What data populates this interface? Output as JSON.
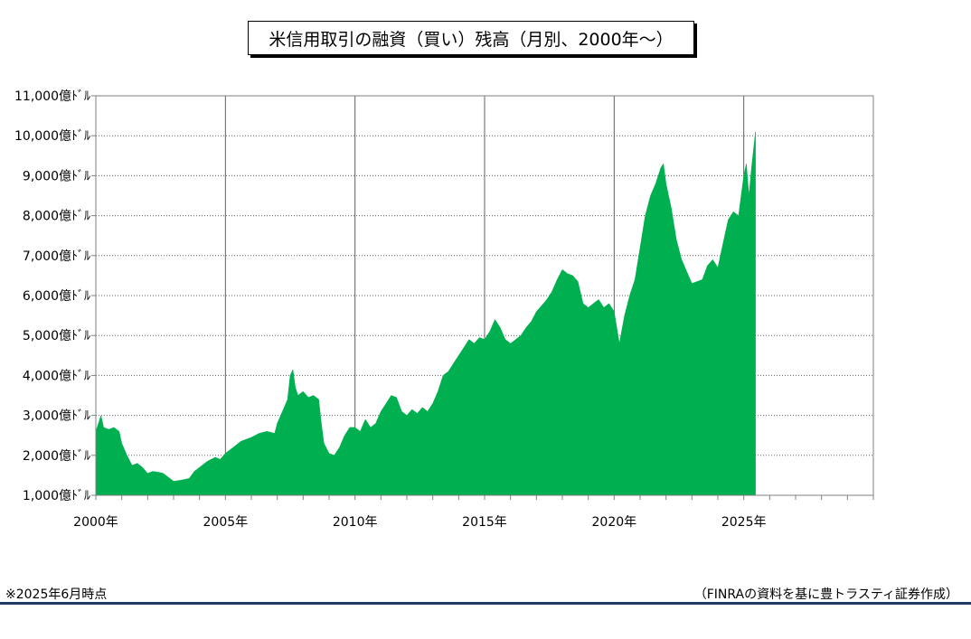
{
  "page": {
    "title": "米信用取引の融資（買い）残高（月別、2000年〜）",
    "footnote": "※2025年6月時点",
    "source": "（FINRAの資料を基に豊トラスティ証券作成）"
  },
  "chart_data": {
    "type": "area",
    "title": "米信用取引の融資（買い）残高（月別、2000年〜）",
    "xlabel": "",
    "ylabel": "",
    "y_unit": "億ﾄﾞﾙ",
    "ylim": [
      1000,
      11000
    ],
    "xlim": [
      2000,
      2030
    ],
    "grid": true,
    "legend": "none",
    "color": "#00b050",
    "y_ticks": [
      1000,
      2000,
      3000,
      4000,
      5000,
      6000,
      7000,
      8000,
      9000,
      10000,
      11000
    ],
    "y_tick_labels": [
      "1,000億ﾄﾞﾙ",
      "2,000億ﾄﾞﾙ",
      "3,000億ﾄﾞﾙ",
      "4,000億ﾄﾞﾙ",
      "5,000億ﾄﾞﾙ",
      "6,000億ﾄﾞﾙ",
      "7,000億ﾄﾞﾙ",
      "8,000億ﾄﾞﾙ",
      "9,000億ﾄﾞﾙ",
      "10,000億ﾄﾞﾙ",
      "11,000億ﾄﾞﾙ"
    ],
    "x_ticks": [
      2000,
      2005,
      2010,
      2015,
      2020,
      2025
    ],
    "x_tick_labels": [
      "2000年",
      "2005年",
      "2010年",
      "2015年",
      "2020年",
      "2025年"
    ],
    "points": [
      [
        2000.0,
        2600
      ],
      [
        2000.1,
        2800
      ],
      [
        2000.2,
        3000
      ],
      [
        2000.3,
        2700
      ],
      [
        2000.5,
        2650
      ],
      [
        2000.7,
        2700
      ],
      [
        2000.9,
        2600
      ],
      [
        2001.0,
        2300
      ],
      [
        2001.2,
        2000
      ],
      [
        2001.4,
        1750
      ],
      [
        2001.6,
        1800
      ],
      [
        2001.8,
        1700
      ],
      [
        2002.0,
        1550
      ],
      [
        2002.2,
        1600
      ],
      [
        2002.4,
        1580
      ],
      [
        2002.6,
        1550
      ],
      [
        2002.8,
        1450
      ],
      [
        2003.0,
        1350
      ],
      [
        2003.3,
        1380
      ],
      [
        2003.6,
        1420
      ],
      [
        2003.8,
        1600
      ],
      [
        2004.0,
        1700
      ],
      [
        2004.3,
        1850
      ],
      [
        2004.6,
        1950
      ],
      [
        2004.8,
        1900
      ],
      [
        2005.0,
        2050
      ],
      [
        2005.3,
        2200
      ],
      [
        2005.6,
        2350
      ],
      [
        2006.0,
        2450
      ],
      [
        2006.3,
        2550
      ],
      [
        2006.6,
        2600
      ],
      [
        2006.9,
        2550
      ],
      [
        2007.0,
        2800
      ],
      [
        2007.2,
        3100
      ],
      [
        2007.4,
        3400
      ],
      [
        2007.5,
        4000
      ],
      [
        2007.6,
        4150
      ],
      [
        2007.7,
        3700
      ],
      [
        2007.8,
        3500
      ],
      [
        2008.0,
        3600
      ],
      [
        2008.2,
        3450
      ],
      [
        2008.4,
        3500
      ],
      [
        2008.6,
        3400
      ],
      [
        2008.7,
        2800
      ],
      [
        2008.8,
        2300
      ],
      [
        2009.0,
        2050
      ],
      [
        2009.2,
        2000
      ],
      [
        2009.4,
        2200
      ],
      [
        2009.6,
        2500
      ],
      [
        2009.8,
        2700
      ],
      [
        2010.0,
        2700
      ],
      [
        2010.2,
        2600
      ],
      [
        2010.4,
        2900
      ],
      [
        2010.6,
        2700
      ],
      [
        2010.8,
        2800
      ],
      [
        2011.0,
        3100
      ],
      [
        2011.2,
        3300
      ],
      [
        2011.4,
        3500
      ],
      [
        2011.6,
        3450
      ],
      [
        2011.8,
        3100
      ],
      [
        2012.0,
        3000
      ],
      [
        2012.2,
        3150
      ],
      [
        2012.4,
        3050
      ],
      [
        2012.6,
        3200
      ],
      [
        2012.8,
        3100
      ],
      [
        2013.0,
        3300
      ],
      [
        2013.2,
        3600
      ],
      [
        2013.4,
        4000
      ],
      [
        2013.6,
        4100
      ],
      [
        2013.8,
        4300
      ],
      [
        2014.0,
        4500
      ],
      [
        2014.2,
        4700
      ],
      [
        2014.4,
        4900
      ],
      [
        2014.6,
        4800
      ],
      [
        2014.8,
        4950
      ],
      [
        2015.0,
        4900
      ],
      [
        2015.2,
        5100
      ],
      [
        2015.4,
        5400
      ],
      [
        2015.6,
        5200
      ],
      [
        2015.8,
        4900
      ],
      [
        2016.0,
        4800
      ],
      [
        2016.2,
        4900
      ],
      [
        2016.4,
        5000
      ],
      [
        2016.6,
        5200
      ],
      [
        2016.8,
        5350
      ],
      [
        2017.0,
        5600
      ],
      [
        2017.2,
        5750
      ],
      [
        2017.4,
        5900
      ],
      [
        2017.6,
        6100
      ],
      [
        2017.8,
        6400
      ],
      [
        2018.0,
        6650
      ],
      [
        2018.2,
        6550
      ],
      [
        2018.4,
        6500
      ],
      [
        2018.6,
        6350
      ],
      [
        2018.8,
        5800
      ],
      [
        2019.0,
        5700
      ],
      [
        2019.2,
        5800
      ],
      [
        2019.4,
        5900
      ],
      [
        2019.6,
        5700
      ],
      [
        2019.8,
        5800
      ],
      [
        2020.0,
        5600
      ],
      [
        2020.1,
        5200
      ],
      [
        2020.2,
        4800
      ],
      [
        2020.4,
        5500
      ],
      [
        2020.6,
        6000
      ],
      [
        2020.8,
        6400
      ],
      [
        2021.0,
        7200
      ],
      [
        2021.2,
        8000
      ],
      [
        2021.4,
        8500
      ],
      [
        2021.6,
        8800
      ],
      [
        2021.8,
        9200
      ],
      [
        2021.9,
        9300
      ],
      [
        2022.0,
        8800
      ],
      [
        2022.2,
        8200
      ],
      [
        2022.4,
        7400
      ],
      [
        2022.6,
        6900
      ],
      [
        2022.8,
        6600
      ],
      [
        2023.0,
        6300
      ],
      [
        2023.2,
        6350
      ],
      [
        2023.4,
        6400
      ],
      [
        2023.6,
        6750
      ],
      [
        2023.8,
        6900
      ],
      [
        2024.0,
        6700
      ],
      [
        2024.2,
        7300
      ],
      [
        2024.4,
        7900
      ],
      [
        2024.6,
        8100
      ],
      [
        2024.8,
        8000
      ],
      [
        2025.0,
        9000
      ],
      [
        2025.1,
        9300
      ],
      [
        2025.2,
        8500
      ],
      [
        2025.3,
        9200
      ],
      [
        2025.45,
        10100
      ]
    ]
  }
}
